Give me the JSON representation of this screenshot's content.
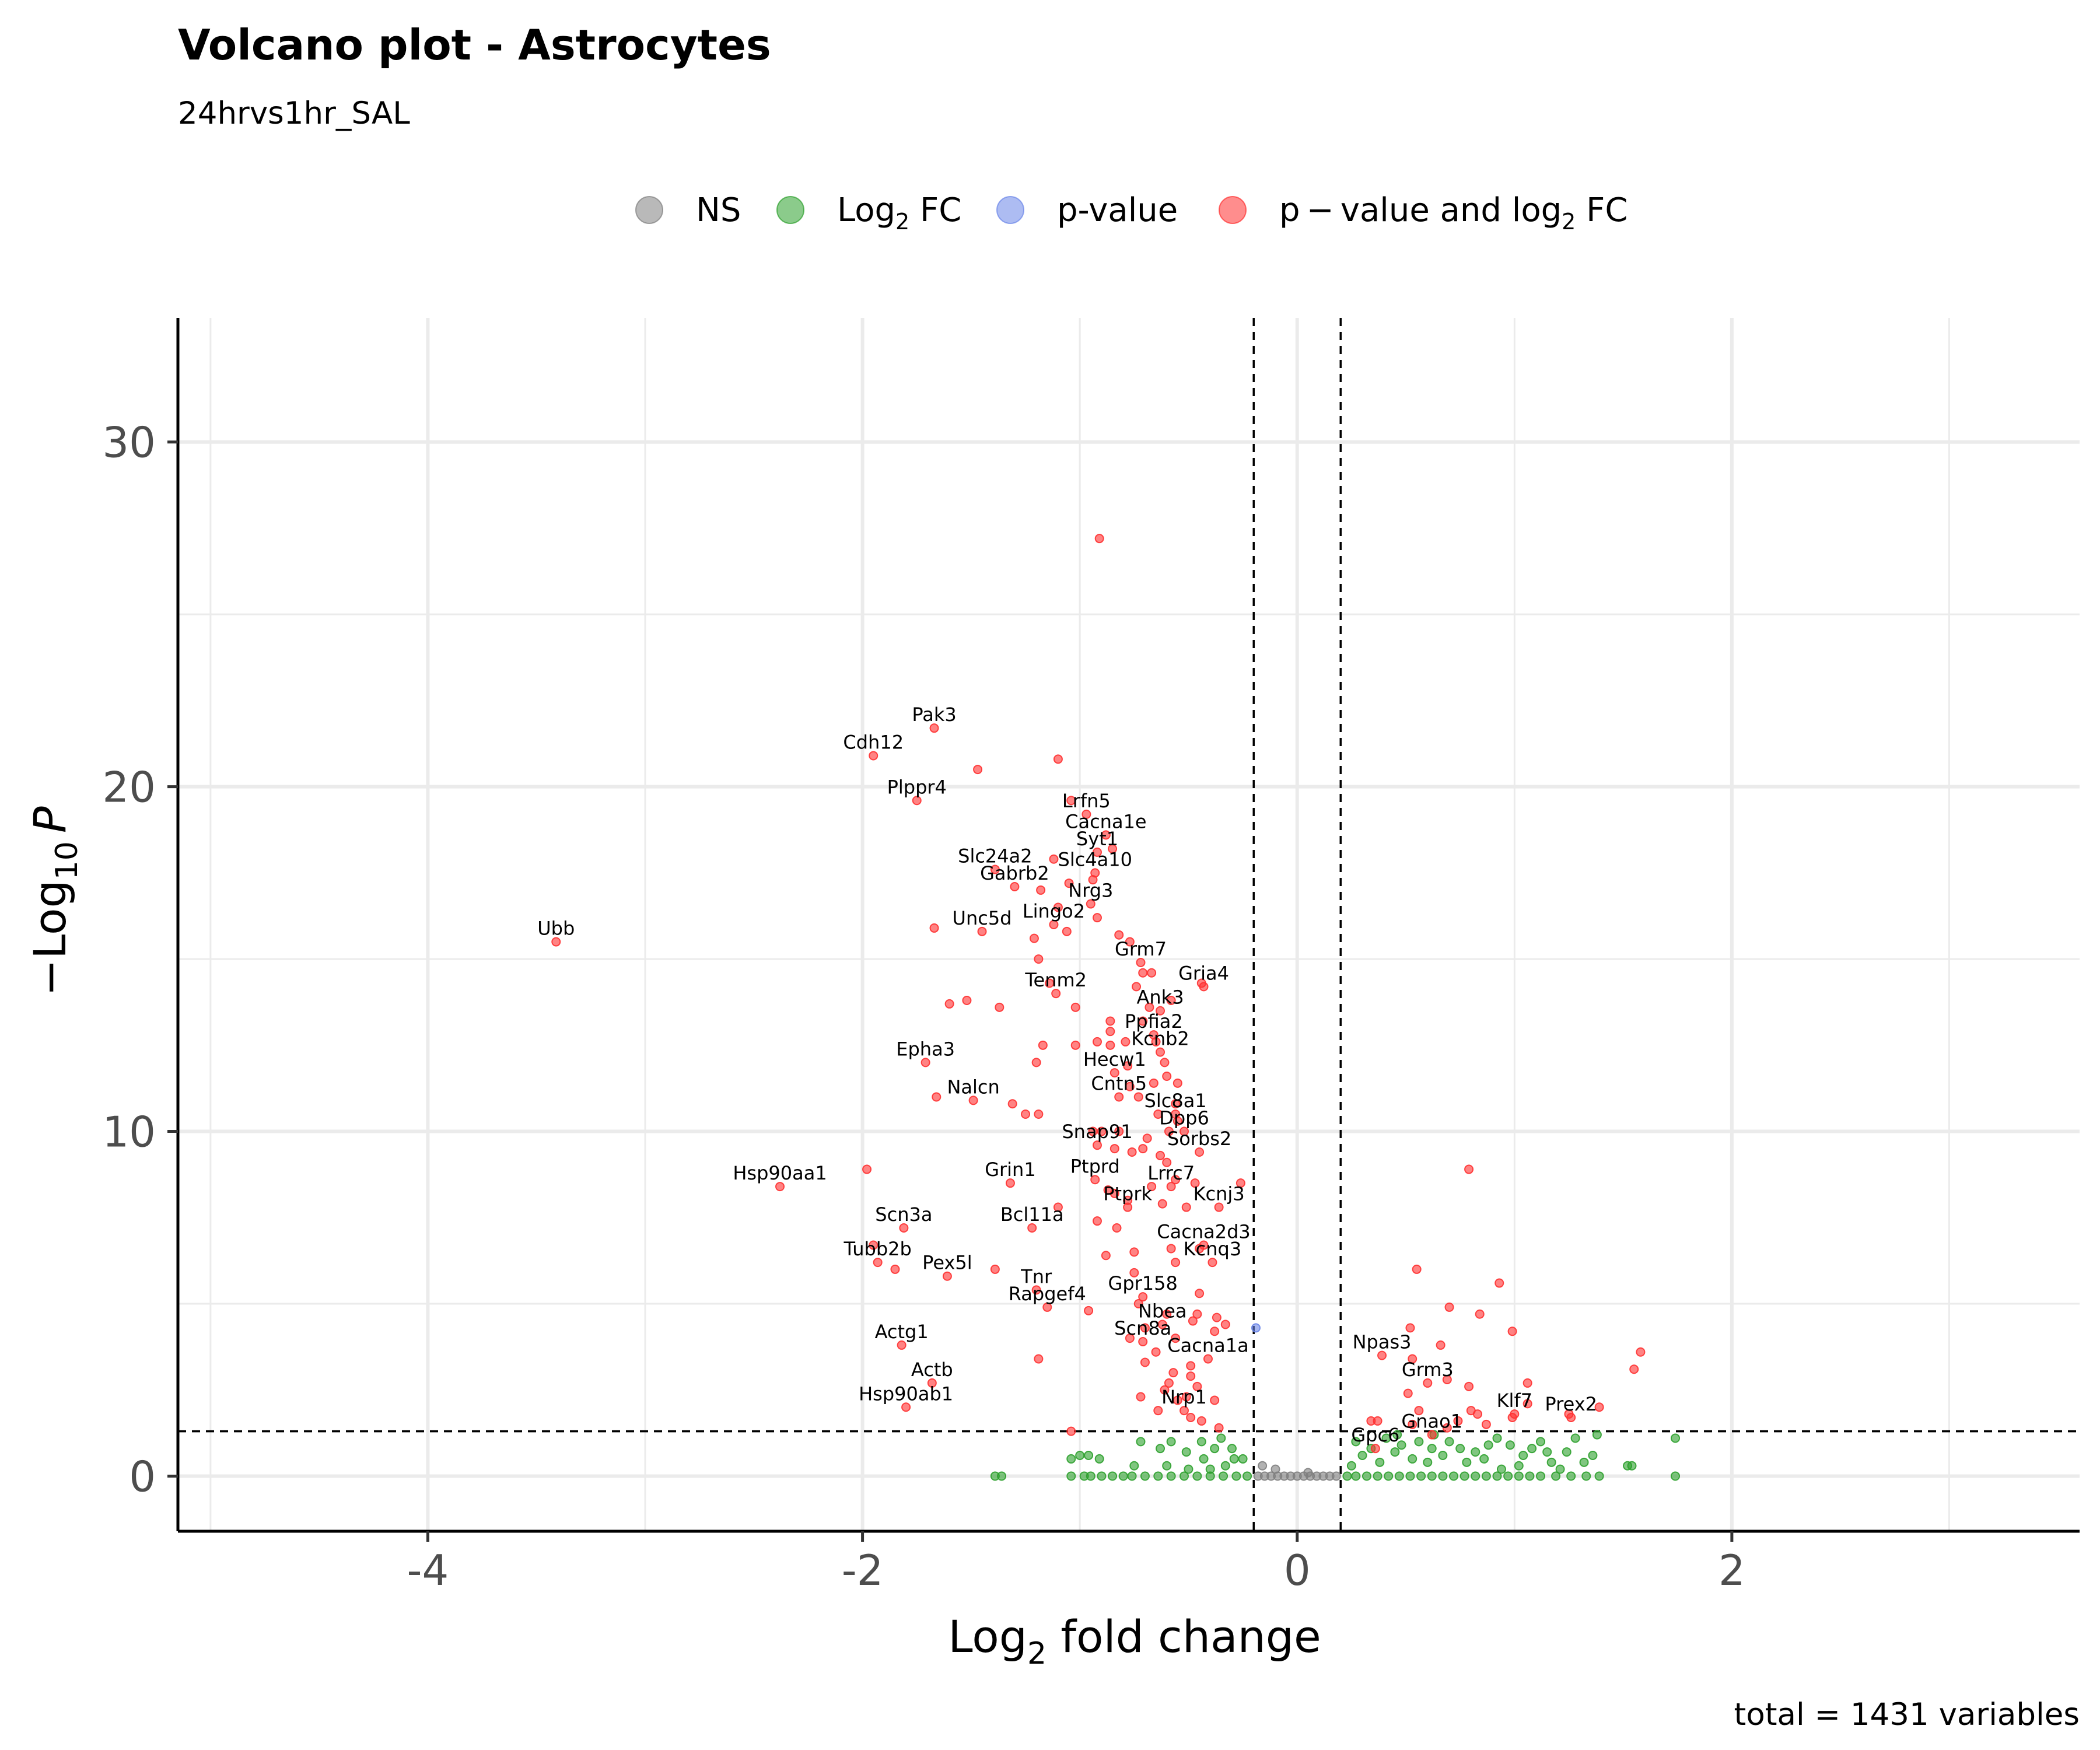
{
  "chart_data": {
    "type": "scatter",
    "title": "Volcano plot - Astrocytes",
    "subtitle": "24hrvs1hr_SAL",
    "caption": "total = 1431 variables",
    "xlabel_main": "Log",
    "xlabel_sub": "2",
    "xlabel_tail": " fold change",
    "ylabel_main": "−Log",
    "ylabel_sub": "10",
    "ylabel_tail": "P",
    "xlim": [
      -5.15,
      3.6
    ],
    "ylim": [
      -1.6,
      33.6
    ],
    "xticks": [
      -4,
      -2,
      0,
      2
    ],
    "xtick_labels": [
      "-4",
      "-2",
      "0",
      "2"
    ],
    "xticks_minor": [
      -5,
      -3,
      -1,
      1,
      3
    ],
    "yticks": [
      0,
      10,
      20,
      30
    ],
    "ytick_labels": [
      "0",
      "10",
      "20",
      "30"
    ],
    "yticks_minor": [
      5,
      15,
      25
    ],
    "fc_cutoff": 0.2,
    "p_cutoff_log10": 1.3,
    "grid": true,
    "legend_position": "top",
    "legend": [
      {
        "key": "NS",
        "parts": [
          [
            "NS",
            ""
          ]
        ],
        "color": "#7f7f7f"
      },
      {
        "key": "FC",
        "parts": [
          [
            "Log",
            ""
          ],
          [
            "2",
            "sub"
          ],
          [
            " FC",
            ""
          ]
        ],
        "color": "#2ca02c"
      },
      {
        "key": "P",
        "parts": [
          [
            "p-value",
            ""
          ]
        ],
        "color": "#6a85e8"
      },
      {
        "key": "PFC",
        "parts": [
          [
            "p − value and log",
            ""
          ],
          [
            "2",
            "sub"
          ],
          [
            " FC",
            ""
          ]
        ],
        "color": "#ff3030"
      }
    ],
    "colors": {
      "NS": "#7f7f7f",
      "FC": "#2ca02c",
      "P": "#6a85e8",
      "PFC": "#ff3030"
    },
    "labeled_genes": [
      {
        "gene": "Ubb",
        "x": -3.41,
        "y": 15.5
      },
      {
        "gene": "Pak3",
        "x": -1.67,
        "y": 21.7
      },
      {
        "gene": "Cdh12",
        "x": -1.95,
        "y": 20.9
      },
      {
        "gene": "Plppr4",
        "x": -1.75,
        "y": 19.6
      },
      {
        "gene": "Lrfn5",
        "x": -0.97,
        "y": 19.2
      },
      {
        "gene": "Cacna1e",
        "x": -0.88,
        "y": 18.6
      },
      {
        "gene": "Syt1",
        "x": -0.92,
        "y": 18.1
      },
      {
        "gene": "Slc24a2",
        "x": -1.39,
        "y": 17.6
      },
      {
        "gene": "Slc4a10",
        "x": -0.93,
        "y": 17.5
      },
      {
        "gene": "Gabrb2",
        "x": -1.3,
        "y": 17.1
      },
      {
        "gene": "Nrg3",
        "x": -0.95,
        "y": 16.6
      },
      {
        "gene": "Lingo2",
        "x": -1.12,
        "y": 16.0
      },
      {
        "gene": "Unc5d",
        "x": -1.45,
        "y": 15.8
      },
      {
        "gene": "Grm7",
        "x": -0.72,
        "y": 14.9
      },
      {
        "gene": "Gria4",
        "x": -0.43,
        "y": 14.2
      },
      {
        "gene": "Tenm2",
        "x": -1.11,
        "y": 14.0
      },
      {
        "gene": "Ank3",
        "x": -0.63,
        "y": 13.5
      },
      {
        "gene": "Ppfia2",
        "x": -0.66,
        "y": 12.8
      },
      {
        "gene": "Kcnb2",
        "x": -0.63,
        "y": 12.3
      },
      {
        "gene": "Epha3",
        "x": -1.71,
        "y": 12.0
      },
      {
        "gene": "Hecw1",
        "x": -0.84,
        "y": 11.7
      },
      {
        "gene": "Cntn5",
        "x": -0.82,
        "y": 11.0
      },
      {
        "gene": "Nalcn",
        "x": -1.49,
        "y": 10.9
      },
      {
        "gene": "Slc8a1",
        "x": -0.56,
        "y": 10.5
      },
      {
        "gene": "Dpp6",
        "x": -0.52,
        "y": 10.0
      },
      {
        "gene": "Snap91",
        "x": -0.92,
        "y": 9.6
      },
      {
        "gene": "Sorbs2",
        "x": -0.45,
        "y": 9.4
      },
      {
        "gene": "Hsp90aa1",
        "x": -2.38,
        "y": 8.4
      },
      {
        "gene": "Grin1",
        "x": -1.32,
        "y": 8.5
      },
      {
        "gene": "Ptprd",
        "x": -0.93,
        "y": 8.6
      },
      {
        "gene": "Lrrc7",
        "x": -0.58,
        "y": 8.4
      },
      {
        "gene": "Kcnj3",
        "x": -0.36,
        "y": 7.8
      },
      {
        "gene": "Ptprk",
        "x": -0.78,
        "y": 7.8
      },
      {
        "gene": "Bcl11a",
        "x": -1.22,
        "y": 7.2
      },
      {
        "gene": "Scn3a",
        "x": -1.81,
        "y": 7.2
      },
      {
        "gene": "Cacna2d3",
        "x": -0.43,
        "y": 6.7
      },
      {
        "gene": "Kcnq3",
        "x": -0.39,
        "y": 6.2
      },
      {
        "gene": "Tubb2b",
        "x": -1.93,
        "y": 6.2
      },
      {
        "gene": "Pex5l",
        "x": -1.61,
        "y": 5.8
      },
      {
        "gene": "Tnr",
        "x": -1.2,
        "y": 5.4
      },
      {
        "gene": "Gpr158",
        "x": -0.71,
        "y": 5.2
      },
      {
        "gene": "Rapgef4",
        "x": -1.15,
        "y": 4.9
      },
      {
        "gene": "Nbea",
        "x": -0.62,
        "y": 4.4
      },
      {
        "gene": "Scn8a",
        "x": -0.71,
        "y": 3.9
      },
      {
        "gene": "Actg1",
        "x": -1.82,
        "y": 3.8
      },
      {
        "gene": "Npas3",
        "x": 0.39,
        "y": 3.5
      },
      {
        "gene": "Cacna1a",
        "x": -0.41,
        "y": 3.4
      },
      {
        "gene": "Grm3",
        "x": 0.6,
        "y": 2.7
      },
      {
        "gene": "Actb",
        "x": -1.68,
        "y": 2.7
      },
      {
        "gene": "Hsp90ab1",
        "x": -1.8,
        "y": 2.0
      },
      {
        "gene": "Nrp1",
        "x": -0.52,
        "y": 1.9
      },
      {
        "gene": "Klf7",
        "x": 1.0,
        "y": 1.8
      },
      {
        "gene": "Prex2",
        "x": 1.26,
        "y": 1.7
      },
      {
        "gene": "Gnao1",
        "x": 0.62,
        "y": 1.2
      },
      {
        "gene": "Gpc6",
        "x": 0.36,
        "y": 0.8
      }
    ],
    "unlabeled_sig_points": [
      [
        -0.91,
        27.2
      ],
      [
        -1.47,
        20.5
      ],
      [
        -1.1,
        20.8
      ],
      [
        -1.04,
        19.6
      ],
      [
        -0.85,
        18.2
      ],
      [
        -1.12,
        17.9
      ],
      [
        -0.94,
        17.3
      ],
      [
        -1.05,
        17.2
      ],
      [
        -1.18,
        17.0
      ],
      [
        -1.1,
        16.5
      ],
      [
        -0.92,
        16.2
      ],
      [
        -1.67,
        15.9
      ],
      [
        -1.06,
        15.8
      ],
      [
        -1.21,
        15.6
      ],
      [
        -0.82,
        15.7
      ],
      [
        -0.77,
        15.5
      ],
      [
        -1.19,
        15.0
      ],
      [
        -0.71,
        14.6
      ],
      [
        -0.67,
        14.6
      ],
      [
        -1.14,
        14.3
      ],
      [
        -0.74,
        14.2
      ],
      [
        -0.44,
        14.3
      ],
      [
        -1.52,
        13.8
      ],
      [
        -1.6,
        13.7
      ],
      [
        -1.37,
        13.6
      ],
      [
        -1.02,
        13.6
      ],
      [
        -0.68,
        13.6
      ],
      [
        -0.58,
        13.8
      ],
      [
        -0.71,
        13.2
      ],
      [
        -0.86,
        13.2
      ],
      [
        -0.86,
        12.9
      ],
      [
        -0.79,
        12.6
      ],
      [
        -1.17,
        12.5
      ],
      [
        -1.02,
        12.5
      ],
      [
        -0.86,
        12.5
      ],
      [
        -0.92,
        12.6
      ],
      [
        -0.65,
        12.6
      ],
      [
        -1.2,
        12.0
      ],
      [
        -0.61,
        12.0
      ],
      [
        -0.78,
        11.9
      ],
      [
        -0.6,
        11.6
      ],
      [
        -0.55,
        11.4
      ],
      [
        -0.66,
        11.4
      ],
      [
        -0.77,
        11.3
      ],
      [
        -0.73,
        11.0
      ],
      [
        -1.66,
        11.0
      ],
      [
        -1.31,
        10.8
      ],
      [
        -1.25,
        10.5
      ],
      [
        -1.19,
        10.5
      ],
      [
        -0.64,
        10.5
      ],
      [
        -0.56,
        10.8
      ],
      [
        -0.55,
        10.3
      ],
      [
        -0.59,
        10.0
      ],
      [
        -0.9,
        10.0
      ],
      [
        -0.94,
        10.0
      ],
      [
        -0.82,
        10.0
      ],
      [
        -0.69,
        9.8
      ],
      [
        -0.76,
        9.4
      ],
      [
        -0.71,
        9.5
      ],
      [
        -0.63,
        9.3
      ],
      [
        -0.84,
        9.5
      ],
      [
        -1.98,
        8.9
      ],
      [
        -0.6,
        9.1
      ],
      [
        -0.56,
        8.6
      ],
      [
        -0.47,
        8.5
      ],
      [
        -0.26,
        8.5
      ],
      [
        -0.67,
        8.4
      ],
      [
        -0.87,
        8.3
      ],
      [
        -0.84,
        8.2
      ],
      [
        -0.78,
        8.0
      ],
      [
        -0.62,
        7.9
      ],
      [
        -1.1,
        7.8
      ],
      [
        -0.51,
        7.8
      ],
      [
        -0.92,
        7.4
      ],
      [
        -0.83,
        7.2
      ],
      [
        -1.95,
        6.7
      ],
      [
        -0.58,
        6.6
      ],
      [
        -0.45,
        6.6
      ],
      [
        -0.75,
        6.5
      ],
      [
        -0.88,
        6.4
      ],
      [
        -0.56,
        6.2
      ],
      [
        -1.39,
        6.0
      ],
      [
        -1.85,
        6.0
      ],
      [
        -0.75,
        5.9
      ],
      [
        -0.45,
        5.3
      ],
      [
        -0.73,
        5.0
      ],
      [
        -0.96,
        4.8
      ],
      [
        -0.6,
        4.7
      ],
      [
        -0.46,
        4.7
      ],
      [
        -0.37,
        4.6
      ],
      [
        -0.48,
        4.5
      ],
      [
        -0.33,
        4.4
      ],
      [
        -0.38,
        4.2
      ],
      [
        -0.7,
        4.3
      ],
      [
        -0.77,
        4.0
      ],
      [
        -0.56,
        4.0
      ],
      [
        -0.65,
        3.6
      ],
      [
        -1.19,
        3.4
      ],
      [
        -0.49,
        3.2
      ],
      [
        -0.57,
        3.0
      ],
      [
        -0.7,
        3.3
      ],
      [
        -0.49,
        2.9
      ],
      [
        -0.59,
        2.7
      ],
      [
        -0.46,
        2.6
      ],
      [
        -0.51,
        2.3
      ],
      [
        -0.61,
        2.5
      ],
      [
        -0.72,
        2.3
      ],
      [
        -0.55,
        2.2
      ],
      [
        -0.38,
        2.2
      ],
      [
        -0.64,
        1.9
      ],
      [
        -0.49,
        1.7
      ],
      [
        -0.44,
        1.6
      ],
      [
        -1.04,
        1.3
      ],
      [
        -0.36,
        1.4
      ],
      [
        0.79,
        8.9
      ],
      [
        0.55,
        6.0
      ],
      [
        0.93,
        5.6
      ],
      [
        0.7,
        4.9
      ],
      [
        0.84,
        4.7
      ],
      [
        0.52,
        4.3
      ],
      [
        0.99,
        4.2
      ],
      [
        1.58,
        3.6
      ],
      [
        1.55,
        3.1
      ],
      [
        0.66,
        3.8
      ],
      [
        0.53,
        3.4
      ],
      [
        0.69,
        2.8
      ],
      [
        1.06,
        2.7
      ],
      [
        0.79,
        2.6
      ],
      [
        0.51,
        2.4
      ],
      [
        1.06,
        2.1
      ],
      [
        1.39,
        2.0
      ],
      [
        0.8,
        1.9
      ],
      [
        0.56,
        1.9
      ],
      [
        0.99,
        1.7
      ],
      [
        1.25,
        1.8
      ],
      [
        0.83,
        1.8
      ],
      [
        0.74,
        1.6
      ],
      [
        0.34,
        1.6
      ],
      [
        0.37,
        1.6
      ],
      [
        0.53,
        1.5
      ],
      [
        0.87,
        1.5
      ],
      [
        0.69,
        1.4
      ]
    ],
    "p_only_points": [
      [
        -0.19,
        4.3
      ]
    ],
    "fc_only_points": [
      [
        -1.39,
        0
      ],
      [
        -1.36,
        0
      ],
      [
        -1.04,
        0
      ],
      [
        -0.98,
        0
      ],
      [
        -0.95,
        0
      ],
      [
        -0.9,
        0
      ],
      [
        -0.85,
        0
      ],
      [
        -0.8,
        0
      ],
      [
        -0.76,
        0
      ],
      [
        -0.7,
        0
      ],
      [
        -0.64,
        0
      ],
      [
        -0.58,
        0
      ],
      [
        -0.52,
        0
      ],
      [
        -0.46,
        0
      ],
      [
        -0.4,
        0
      ],
      [
        -0.34,
        0
      ],
      [
        -0.28,
        0
      ],
      [
        -0.23,
        0
      ],
      [
        -1.0,
        0.6
      ],
      [
        -0.96,
        0.6
      ],
      [
        -0.91,
        0.5
      ],
      [
        -1.04,
        0.5
      ],
      [
        -0.72,
        1.0
      ],
      [
        -0.63,
        0.8
      ],
      [
        -0.58,
        1.0
      ],
      [
        -0.51,
        0.7
      ],
      [
        -0.44,
        1.0
      ],
      [
        -0.38,
        0.8
      ],
      [
        -0.35,
        1.1
      ],
      [
        -0.43,
        0.5
      ],
      [
        -0.29,
        0.5
      ],
      [
        -0.3,
        0.8
      ],
      [
        -0.75,
        0.3
      ],
      [
        -0.6,
        0.3
      ],
      [
        -0.5,
        0.2
      ],
      [
        -0.4,
        0.2
      ],
      [
        -0.33,
        0.3
      ],
      [
        -0.25,
        0.5
      ],
      [
        0.23,
        0
      ],
      [
        0.27,
        0
      ],
      [
        0.32,
        0
      ],
      [
        0.37,
        0
      ],
      [
        0.42,
        0
      ],
      [
        0.47,
        0
      ],
      [
        0.52,
        0
      ],
      [
        0.57,
        0
      ],
      [
        0.62,
        0
      ],
      [
        0.67,
        0
      ],
      [
        0.72,
        0
      ],
      [
        0.77,
        0
      ],
      [
        0.82,
        0
      ],
      [
        0.87,
        0
      ],
      [
        0.92,
        0
      ],
      [
        0.97,
        0
      ],
      [
        1.02,
        0
      ],
      [
        1.07,
        0
      ],
      [
        1.12,
        0
      ],
      [
        1.19,
        0
      ],
      [
        1.26,
        0
      ],
      [
        1.33,
        0
      ],
      [
        1.39,
        0
      ],
      [
        1.52,
        0.3
      ],
      [
        1.54,
        0.3
      ],
      [
        1.74,
        0
      ],
      [
        1.74,
        1.1
      ],
      [
        1.38,
        1.2
      ],
      [
        1.36,
        0.6
      ],
      [
        1.32,
        0.4
      ],
      [
        1.24,
        0.7
      ],
      [
        1.21,
        0.2
      ],
      [
        1.15,
        0.7
      ],
      [
        1.12,
        1.0
      ],
      [
        1.08,
        0.8
      ],
      [
        1.04,
        0.6
      ],
      [
        1.02,
        0.3
      ],
      [
        0.98,
        0.9
      ],
      [
        0.92,
        1.1
      ],
      [
        0.88,
        0.9
      ],
      [
        0.86,
        0.5
      ],
      [
        0.82,
        0.7
      ],
      [
        0.78,
        0.4
      ],
      [
        0.75,
        0.8
      ],
      [
        0.7,
        1.0
      ],
      [
        0.67,
        0.6
      ],
      [
        0.62,
        0.8
      ],
      [
        0.6,
        0.4
      ],
      [
        0.56,
        1.0
      ],
      [
        0.53,
        0.5
      ],
      [
        0.48,
        0.9
      ],
      [
        0.45,
        0.7
      ],
      [
        0.41,
        1.1
      ],
      [
        0.38,
        0.4
      ],
      [
        0.34,
        0.8
      ],
      [
        0.3,
        0.6
      ],
      [
        0.27,
        1.0
      ],
      [
        0.25,
        0.3
      ],
      [
        0.94,
        0.2
      ],
      [
        1.17,
        0.4
      ],
      [
        1.28,
        1.1
      ],
      [
        0.63,
        1.2
      ],
      [
        0.46,
        1.2
      ]
    ],
    "ns_points": [
      [
        -0.18,
        0
      ],
      [
        -0.15,
        0
      ],
      [
        -0.12,
        0
      ],
      [
        -0.09,
        0
      ],
      [
        -0.06,
        0
      ],
      [
        -0.03,
        0
      ],
      [
        0.0,
        0
      ],
      [
        0.03,
        0
      ],
      [
        0.06,
        0
      ],
      [
        0.09,
        0
      ],
      [
        0.12,
        0
      ],
      [
        0.15,
        0
      ],
      [
        0.18,
        0
      ],
      [
        -0.16,
        0.3
      ],
      [
        -0.1,
        0.2
      ],
      [
        0.05,
        0.1
      ]
    ]
  }
}
